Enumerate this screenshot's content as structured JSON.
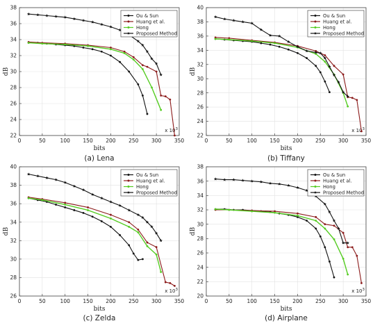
{
  "figure": {
    "colors": {
      "ou_sun": "#111111",
      "huang": "#8b1a1a",
      "hong": "#55cc22",
      "proposed": "#111111"
    }
  },
  "chart_data": [
    {
      "type": "line",
      "caption": "(a) Lena",
      "xlabel": "bits",
      "ylabel": "dB",
      "x_scale_label": "x 10",
      "x_scale_exp": "3",
      "xlim": [
        0,
        350
      ],
      "ylim": [
        22,
        38
      ],
      "xticks": [
        0,
        50,
        100,
        150,
        200,
        250,
        300,
        350
      ],
      "yticks": [
        22,
        24,
        26,
        28,
        30,
        32,
        34,
        36,
        38
      ],
      "grid": true,
      "legend_position": "top-right",
      "series": [
        {
          "name": "Ou & Sun",
          "color_key": "ou_sun",
          "marker": "circle",
          "x": [
            20,
            40,
            60,
            80,
            100,
            120,
            140,
            160,
            180,
            200,
            220,
            240,
            260,
            270,
            280
          ],
          "y": [
            33.6,
            33.6,
            33.5,
            33.4,
            33.3,
            33.2,
            33.0,
            32.8,
            32.5,
            32.0,
            31.2,
            30.0,
            28.4,
            27.0,
            24.7
          ]
        },
        {
          "name": "Huang et al.",
          "color_key": "huang",
          "marker": "circle",
          "x": [
            20,
            50,
            100,
            150,
            200,
            230,
            250,
            270,
            280,
            300,
            310,
            320,
            330,
            340
          ],
          "y": [
            33.7,
            33.6,
            33.5,
            33.3,
            33.0,
            32.5,
            31.8,
            30.8,
            30.6,
            30.0,
            27.0,
            26.9,
            26.5,
            22.0
          ]
        },
        {
          "name": "Hong",
          "color_key": "hong",
          "marker": "circle",
          "x": [
            20,
            50,
            100,
            150,
            200,
            230,
            250,
            270,
            290,
            310
          ],
          "y": [
            33.6,
            33.5,
            33.4,
            33.2,
            32.8,
            32.3,
            31.5,
            30.3,
            28.0,
            25.2
          ]
        },
        {
          "name": "Proposed Method",
          "color_key": "proposed",
          "marker": "star",
          "x": [
            20,
            40,
            60,
            80,
            100,
            120,
            140,
            160,
            180,
            200,
            220,
            240,
            260,
            270,
            280,
            290,
            300,
            310
          ],
          "y": [
            37.2,
            37.1,
            37.0,
            36.9,
            36.8,
            36.6,
            36.4,
            36.2,
            35.9,
            35.6,
            35.2,
            34.6,
            33.8,
            33.3,
            32.5,
            31.6,
            31.0,
            29.6
          ]
        }
      ]
    },
    {
      "type": "line",
      "caption": "(b) Tiffany",
      "xlabel": "bits",
      "ylabel": "dB",
      "x_scale_label": "x 10",
      "x_scale_exp": "3",
      "xlim": [
        0,
        350
      ],
      "ylim": [
        22,
        40
      ],
      "xticks": [
        0,
        50,
        100,
        150,
        200,
        250,
        300,
        350
      ],
      "yticks": [
        22,
        24,
        26,
        28,
        30,
        32,
        34,
        36,
        38,
        40
      ],
      "grid": true,
      "legend_position": "top-right",
      "series": [
        {
          "name": "Ou & Sun",
          "color_key": "ou_sun",
          "marker": "circle",
          "x": [
            20,
            40,
            60,
            80,
            100,
            120,
            140,
            160,
            180,
            200,
            220,
            240,
            250,
            260,
            270
          ],
          "y": [
            35.6,
            35.5,
            35.4,
            35.3,
            35.2,
            35.0,
            34.8,
            34.5,
            34.1,
            33.6,
            32.9,
            31.8,
            30.9,
            29.6,
            28.1
          ]
        },
        {
          "name": "Huang et al.",
          "color_key": "huang",
          "marker": "circle",
          "x": [
            20,
            50,
            100,
            150,
            200,
            240,
            260,
            280,
            300,
            310,
            320,
            330,
            340
          ],
          "y": [
            35.8,
            35.7,
            35.4,
            35.1,
            34.6,
            33.9,
            33.3,
            31.8,
            30.6,
            27.4,
            27.3,
            27.0,
            22.6
          ]
        },
        {
          "name": "Hong",
          "color_key": "hong",
          "marker": "circle",
          "x": [
            20,
            50,
            100,
            150,
            200,
            240,
            260,
            280,
            300,
            310
          ],
          "y": [
            35.6,
            35.5,
            35.3,
            35.0,
            34.4,
            33.5,
            32.4,
            30.6,
            28.0,
            26.1
          ]
        },
        {
          "name": "Proposed Method",
          "color_key": "proposed",
          "marker": "star",
          "x": [
            20,
            40,
            60,
            80,
            100,
            120,
            140,
            160,
            180,
            200,
            220,
            240,
            250,
            260,
            270,
            280,
            290,
            300,
            310
          ],
          "y": [
            38.7,
            38.4,
            38.2,
            38.0,
            37.8,
            36.9,
            36.1,
            36.0,
            35.2,
            34.5,
            33.9,
            33.7,
            33.6,
            32.9,
            31.7,
            30.5,
            29.5,
            28.1,
            27.5
          ]
        }
      ]
    },
    {
      "type": "line",
      "caption": "(c) Zelda",
      "xlabel": "bits",
      "ylabel": "dB",
      "x_scale_label": "x 10",
      "x_scale_exp": "3",
      "xlim": [
        0,
        350
      ],
      "ylim": [
        26,
        40
      ],
      "xticks": [
        0,
        50,
        100,
        150,
        200,
        250,
        300,
        350
      ],
      "yticks": [
        26,
        28,
        30,
        32,
        34,
        36,
        38,
        40
      ],
      "grid": true,
      "legend_position": "top-right",
      "series": [
        {
          "name": "Ou & Sun",
          "color_key": "ou_sun",
          "marker": "circle",
          "x": [
            20,
            40,
            60,
            80,
            100,
            120,
            140,
            160,
            180,
            200,
            220,
            240,
            250,
            260,
            270
          ],
          "y": [
            36.6,
            36.4,
            36.2,
            35.9,
            35.6,
            35.3,
            35.0,
            34.6,
            34.1,
            33.5,
            32.6,
            31.5,
            30.6,
            29.9,
            30.0
          ]
        },
        {
          "name": "Huang et al.",
          "color_key": "huang",
          "marker": "circle",
          "x": [
            20,
            50,
            100,
            150,
            200,
            240,
            260,
            280,
            300,
            320,
            330,
            340
          ],
          "y": [
            36.7,
            36.5,
            36.1,
            35.6,
            34.8,
            34.0,
            33.2,
            31.8,
            31.3,
            27.5,
            27.4,
            27.1
          ]
        },
        {
          "name": "Hong",
          "color_key": "hong",
          "marker": "circle",
          "x": [
            20,
            50,
            100,
            150,
            200,
            240,
            260,
            280,
            300,
            310
          ],
          "y": [
            36.6,
            36.4,
            35.9,
            35.3,
            34.4,
            33.5,
            32.9,
            31.4,
            30.5,
            28.6
          ]
        },
        {
          "name": "Proposed Method",
          "color_key": "proposed",
          "marker": "star",
          "x": [
            20,
            40,
            60,
            80,
            100,
            120,
            140,
            160,
            180,
            200,
            220,
            240,
            260,
            270,
            280,
            290,
            300,
            310
          ],
          "y": [
            39.2,
            39.0,
            38.8,
            38.6,
            38.3,
            37.9,
            37.5,
            37.0,
            36.6,
            36.2,
            35.8,
            35.3,
            34.8,
            34.5,
            34.0,
            33.5,
            32.8,
            32.0
          ]
        }
      ]
    },
    {
      "type": "line",
      "caption": "(d) Airplane",
      "xlabel": "bits",
      "ylabel": "dB",
      "x_scale_label": "x 10",
      "x_scale_exp": "3",
      "xlim": [
        0,
        350
      ],
      "ylim": [
        20,
        38
      ],
      "xticks": [
        0,
        50,
        100,
        150,
        200,
        250,
        300,
        350
      ],
      "yticks": [
        20,
        22,
        24,
        26,
        28,
        30,
        32,
        34,
        36,
        38
      ],
      "grid": true,
      "legend_position": "top-right",
      "series": [
        {
          "name": "Ou & Sun",
          "color_key": "ou_sun",
          "marker": "circle",
          "x": [
            20,
            40,
            60,
            80,
            100,
            120,
            140,
            160,
            180,
            200,
            220,
            240,
            250,
            260,
            270,
            280
          ],
          "y": [
            32.1,
            32.1,
            32.0,
            32.0,
            31.9,
            31.8,
            31.7,
            31.5,
            31.3,
            31.0,
            30.5,
            29.4,
            28.3,
            26.8,
            24.8,
            22.6
          ]
        },
        {
          "name": "Huang et al.",
          "color_key": "huang",
          "marker": "circle",
          "x": [
            20,
            50,
            100,
            150,
            200,
            240,
            260,
            280,
            300,
            310,
            320,
            330,
            340
          ],
          "y": [
            32.0,
            32.0,
            31.9,
            31.8,
            31.5,
            31.0,
            30.0,
            29.8,
            28.8,
            26.8,
            26.8,
            25.6,
            21.8
          ]
        },
        {
          "name": "Hong",
          "color_key": "hong",
          "marker": "circle",
          "x": [
            20,
            50,
            100,
            150,
            200,
            240,
            260,
            280,
            300,
            310
          ],
          "y": [
            32.1,
            32.0,
            31.8,
            31.6,
            31.2,
            30.5,
            29.4,
            27.9,
            25.2,
            23.0
          ]
        },
        {
          "name": "Proposed Method",
          "color_key": "proposed",
          "marker": "star",
          "x": [
            20,
            40,
            60,
            80,
            100,
            120,
            140,
            160,
            180,
            200,
            220,
            240,
            260,
            270,
            280,
            290,
            300,
            310
          ],
          "y": [
            36.3,
            36.2,
            36.2,
            36.1,
            36.0,
            35.9,
            35.7,
            35.6,
            35.4,
            35.1,
            34.7,
            33.9,
            32.8,
            31.7,
            30.5,
            29.4,
            27.4,
            27.4
          ]
        }
      ]
    }
  ]
}
